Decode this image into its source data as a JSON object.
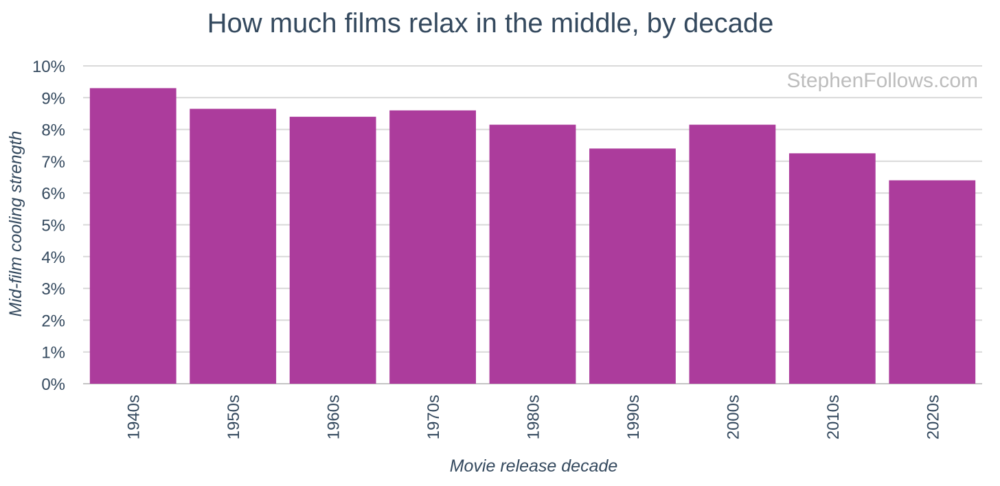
{
  "chart_data": {
    "type": "bar",
    "title": "How much films relax in the middle, by decade",
    "xlabel": "Movie release decade",
    "ylabel": "Mid-film cooling strength",
    "categories": [
      "1940s",
      "1950s",
      "1960s",
      "1970s",
      "1980s",
      "1990s",
      "2000s",
      "2010s",
      "2020s"
    ],
    "values": [
      9.3,
      8.65,
      8.4,
      8.6,
      8.15,
      7.4,
      8.15,
      7.25,
      6.4
    ],
    "ylim": [
      0,
      10
    ],
    "yticks": [
      "0%",
      "1%",
      "2%",
      "3%",
      "4%",
      "5%",
      "6%",
      "7%",
      "8%",
      "9%",
      "10%"
    ],
    "grid": true,
    "legend": "none",
    "bar_color": "#ac3c9c",
    "watermark": "StephenFollows.com"
  }
}
